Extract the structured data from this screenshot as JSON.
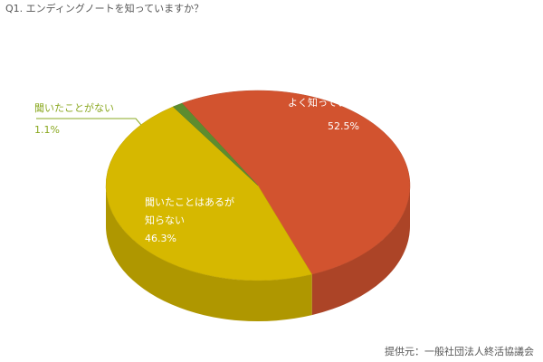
{
  "chart_data": {
    "type": "pie3d",
    "title": "Q1. エンディングノートを知っていますか？",
    "categories": [
      "よく知っている",
      "聞いたことはあるが\n知らない",
      "聞いたことがない"
    ],
    "values": [
      52.5,
      46.3,
      1.1
    ],
    "value_labels": [
      "52.5%",
      "46.3%",
      "1.1%"
    ],
    "colors": [
      "#d2532f",
      "#d6b800",
      "#5d8c2f"
    ],
    "source": "提供元：一般社団法人終活協議会"
  }
}
